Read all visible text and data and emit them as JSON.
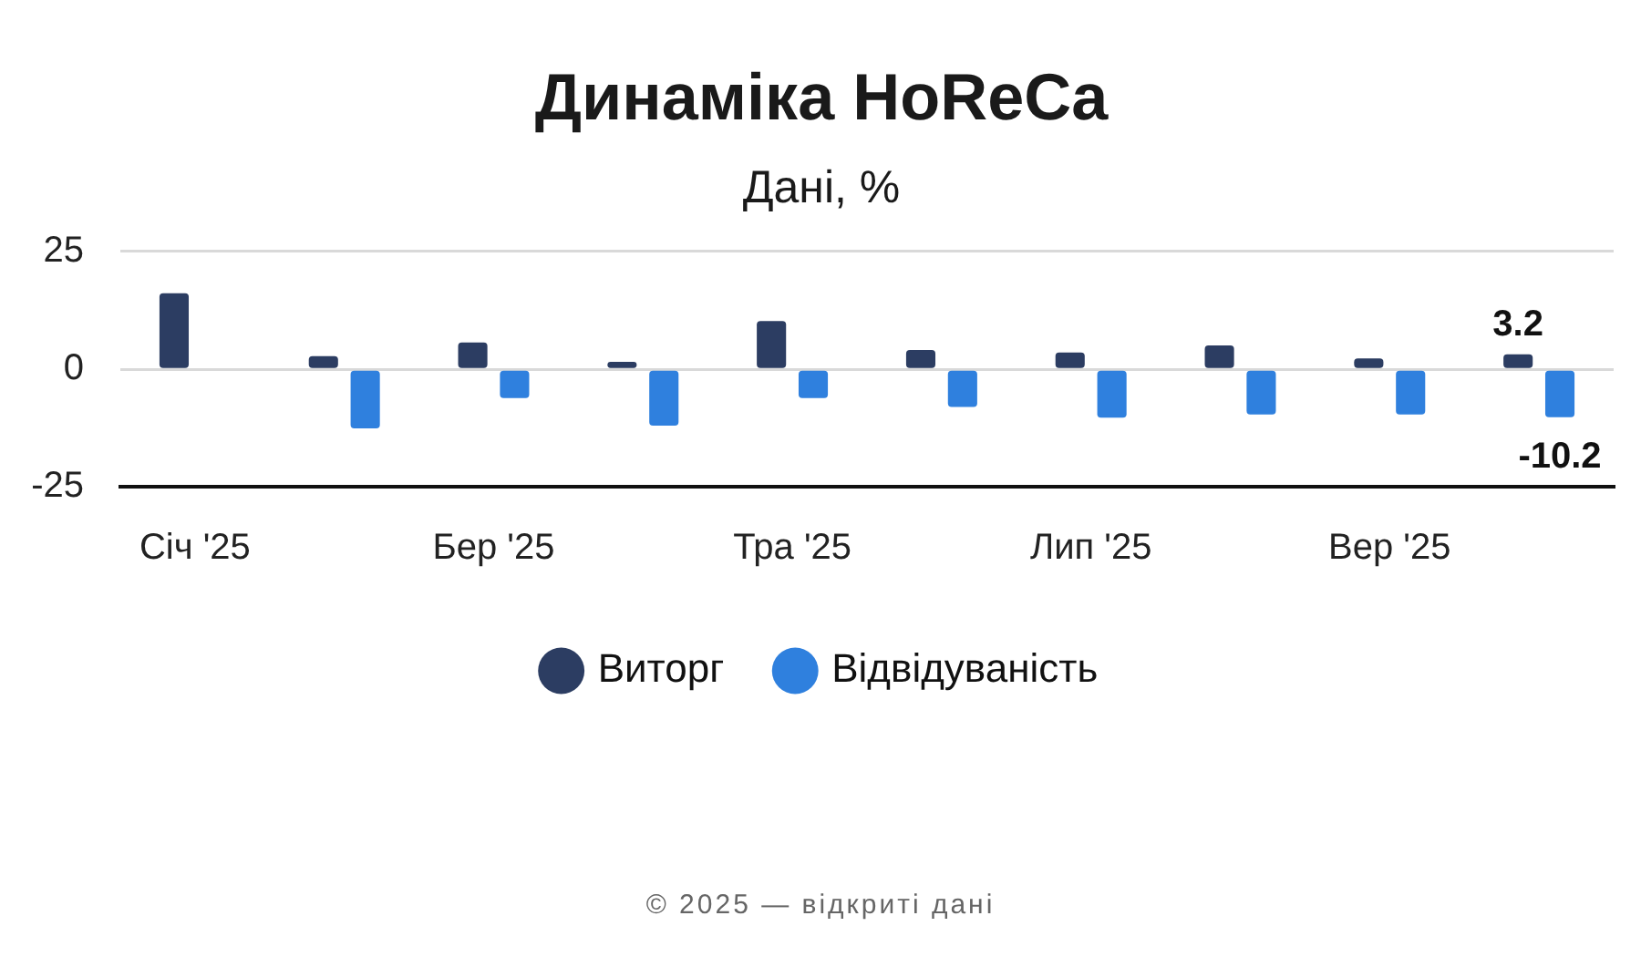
{
  "chart_data": {
    "type": "bar",
    "title": "Динаміка HoReCa",
    "subtitle": "Дані, %",
    "categories": [
      "Січ '25",
      null,
      "Бер '25",
      null,
      "Тра '25",
      null,
      "Лип '25",
      null,
      "Вер '25",
      null
    ],
    "series": [
      {
        "name": "Виторг",
        "color": "#2c3d62",
        "values": [
          16.2,
          2.8,
          5.7,
          1.6,
          10.3,
          4.1,
          3.6,
          5.1,
          2.3,
          3.2
        ],
        "value_labels": [
          null,
          null,
          null,
          null,
          null,
          null,
          null,
          null,
          null,
          "3.2"
        ]
      },
      {
        "name": "Відвідуваність",
        "color": "#2f80de",
        "values": [
          null,
          -12.6,
          -6.1,
          -12.0,
          -6.1,
          -8.0,
          -10.3,
          -9.6,
          -9.6,
          -10.2
        ],
        "value_labels": [
          null,
          null,
          null,
          null,
          null,
          null,
          null,
          null,
          null,
          "-10.2"
        ]
      }
    ],
    "ylim": [
      -25,
      25
    ],
    "yticks": [
      -25,
      0,
      25
    ],
    "grid": "y",
    "legend": "bottom",
    "annotations": [
      "© 2025 — відкриті дані"
    ]
  }
}
